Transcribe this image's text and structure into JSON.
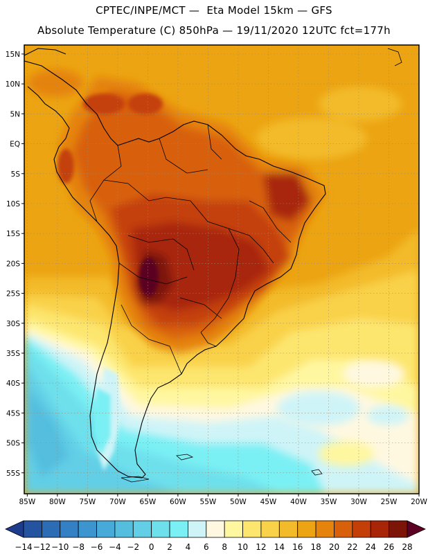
{
  "title": {
    "line1": "CPTEC/INPE/MCT —  Eta Model 15km — GFS",
    "line2": "Absolute Temperature (C) 850hPa — 19/11/2020 12UTC fct=177h"
  },
  "map": {
    "lat_labels": [
      "15N",
      "10N",
      "5N",
      "EQ",
      "5S",
      "10S",
      "15S",
      "20S",
      "25S",
      "30S",
      "35S",
      "40S",
      "45S",
      "50S",
      "55S"
    ],
    "lat_values": [
      15,
      10,
      5,
      0,
      -5,
      -10,
      -15,
      -20,
      -25,
      -30,
      -35,
      -40,
      -45,
      -50,
      -55
    ],
    "lon_labels": [
      "85W",
      "80W",
      "75W",
      "70W",
      "65W",
      "60W",
      "55W",
      "50W",
      "45W",
      "40W",
      "35W",
      "30W",
      "25W",
      "20W"
    ],
    "lon_values": [
      -85,
      -80,
      -75,
      -70,
      -65,
      -60,
      -55,
      -50,
      -45,
      -40,
      -35,
      -30,
      -25,
      -20
    ],
    "extent": {
      "lon_min": -85.5,
      "lon_max": -20,
      "lat_min": -58.5,
      "lat_max": 16.5
    }
  },
  "colorbar": {
    "labels": [
      "-14",
      "-12",
      "-10",
      "-8",
      "-6",
      "-4",
      "-2",
      "0",
      "2",
      "4",
      "6",
      "8",
      "10",
      "12",
      "14",
      "16",
      "18",
      "20",
      "22",
      "24",
      "26",
      "28"
    ],
    "colors": [
      "#1e3c8c",
      "#2453a0",
      "#2b6cb4",
      "#3480c4",
      "#3d95cf",
      "#48aad8",
      "#55bedf",
      "#62cfe6",
      "#6ee0ec",
      "#7af0f4",
      "#cff4f8",
      "#fff8e0",
      "#fff7a0",
      "#fde66e",
      "#f9d24a",
      "#f3bb2a",
      "#eca412",
      "#e5830c",
      "#d8600a",
      "#c43f08",
      "#a82508",
      "#7c1508",
      "#5c0024"
    ]
  },
  "colors": {
    "ocean_warm": "#eca412",
    "ocean_mid": "#f3bb2a",
    "land_hot": "#c43f08",
    "core_hot": "#7c1508",
    "cold": "#62cfe6"
  }
}
